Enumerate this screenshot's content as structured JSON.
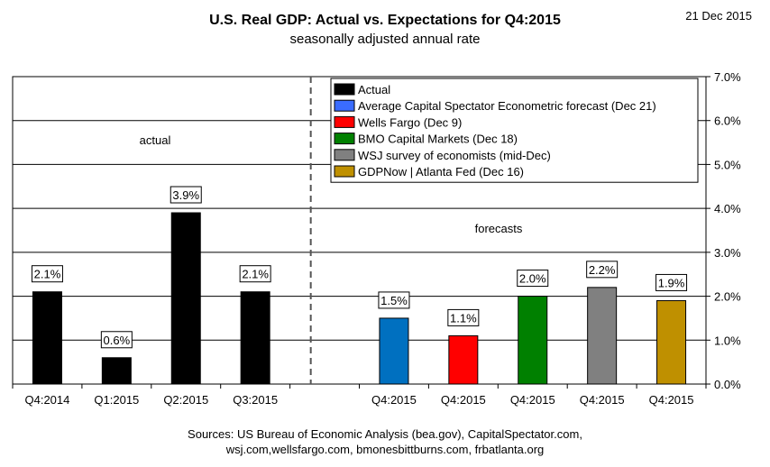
{
  "header": {
    "title": "U.S. Real GDP: Actual vs. Expectations for Q4:2015",
    "subtitle": "seasonally adjusted annual rate",
    "date": "21 Dec 2015"
  },
  "footer": {
    "line1": "Sources: US Bureau of Economic Analysis (bea.gov), CapitalSpectator.com,",
    "line2": "wsj.com,wellsfargo.com,  bmonesbittburns.com, frbatlanta.org"
  },
  "chart_data": {
    "type": "bar",
    "title": "U.S. Real GDP: Actual vs. Expectations for Q4:2015",
    "subtitle": "seasonally adjusted annual rate",
    "xlabel": "",
    "ylabel": "",
    "ylim": [
      0,
      7
    ],
    "ytick_labels": [
      "0.0%",
      "1.0%",
      "2.0%",
      "3.0%",
      "4.0%",
      "5.0%",
      "6.0%",
      "7.0%"
    ],
    "y_axis_side": "right",
    "grid": true,
    "legend_position": "top-right",
    "section_labels": {
      "actual": "actual",
      "forecasts": "forecasts"
    },
    "bars": [
      {
        "category": "Q4:2014",
        "value": 2.1,
        "label": "2.1%",
        "series": "Actual",
        "color": "#000000"
      },
      {
        "category": "Q1:2015",
        "value": 0.6,
        "label": "0.6%",
        "series": "Actual",
        "color": "#000000"
      },
      {
        "category": "Q2:2015",
        "value": 3.9,
        "label": "3.9%",
        "series": "Actual",
        "color": "#000000"
      },
      {
        "category": "Q3:2015",
        "value": 2.1,
        "label": "2.1%",
        "series": "Actual",
        "color": "#000000"
      },
      {
        "category": "Q4:2015",
        "value": 1.5,
        "label": "1.5%",
        "series": "Average Capital Spectator Econometric forecast (Dec 21)",
        "color": "#0070c0"
      },
      {
        "category": "Q4:2015",
        "value": 1.1,
        "label": "1.1%",
        "series": "Wells Fargo (Dec 9)",
        "color": "#ff0000"
      },
      {
        "category": "Q4:2015",
        "value": 2.0,
        "label": "2.0%",
        "series": "BMO Capital Markets (Dec 18)",
        "color": "#008000"
      },
      {
        "category": "Q4:2015",
        "value": 2.2,
        "label": "2.2%",
        "series": "WSJ survey of economists (mid-Dec)",
        "color": "#808080"
      },
      {
        "category": "Q4:2015",
        "value": 1.9,
        "label": "1.9%",
        "series": "GDPNow | Atlanta Fed (Dec 16)",
        "color": "#bf9000"
      }
    ],
    "legend": [
      {
        "name": "Actual",
        "color": "#000000"
      },
      {
        "name": "Average Capital Spectator Econometric forecast (Dec 21)",
        "color": "#3a6cff"
      },
      {
        "name": "Wells Fargo (Dec 9)",
        "color": "#ff0000"
      },
      {
        "name": "BMO Capital Markets (Dec 18)",
        "color": "#008000"
      },
      {
        "name": "WSJ survey of economists (mid-Dec)",
        "color": "#808080"
      },
      {
        "name": "GDPNow | Atlanta Fed (Dec 16)",
        "color": "#bf9000"
      }
    ]
  }
}
